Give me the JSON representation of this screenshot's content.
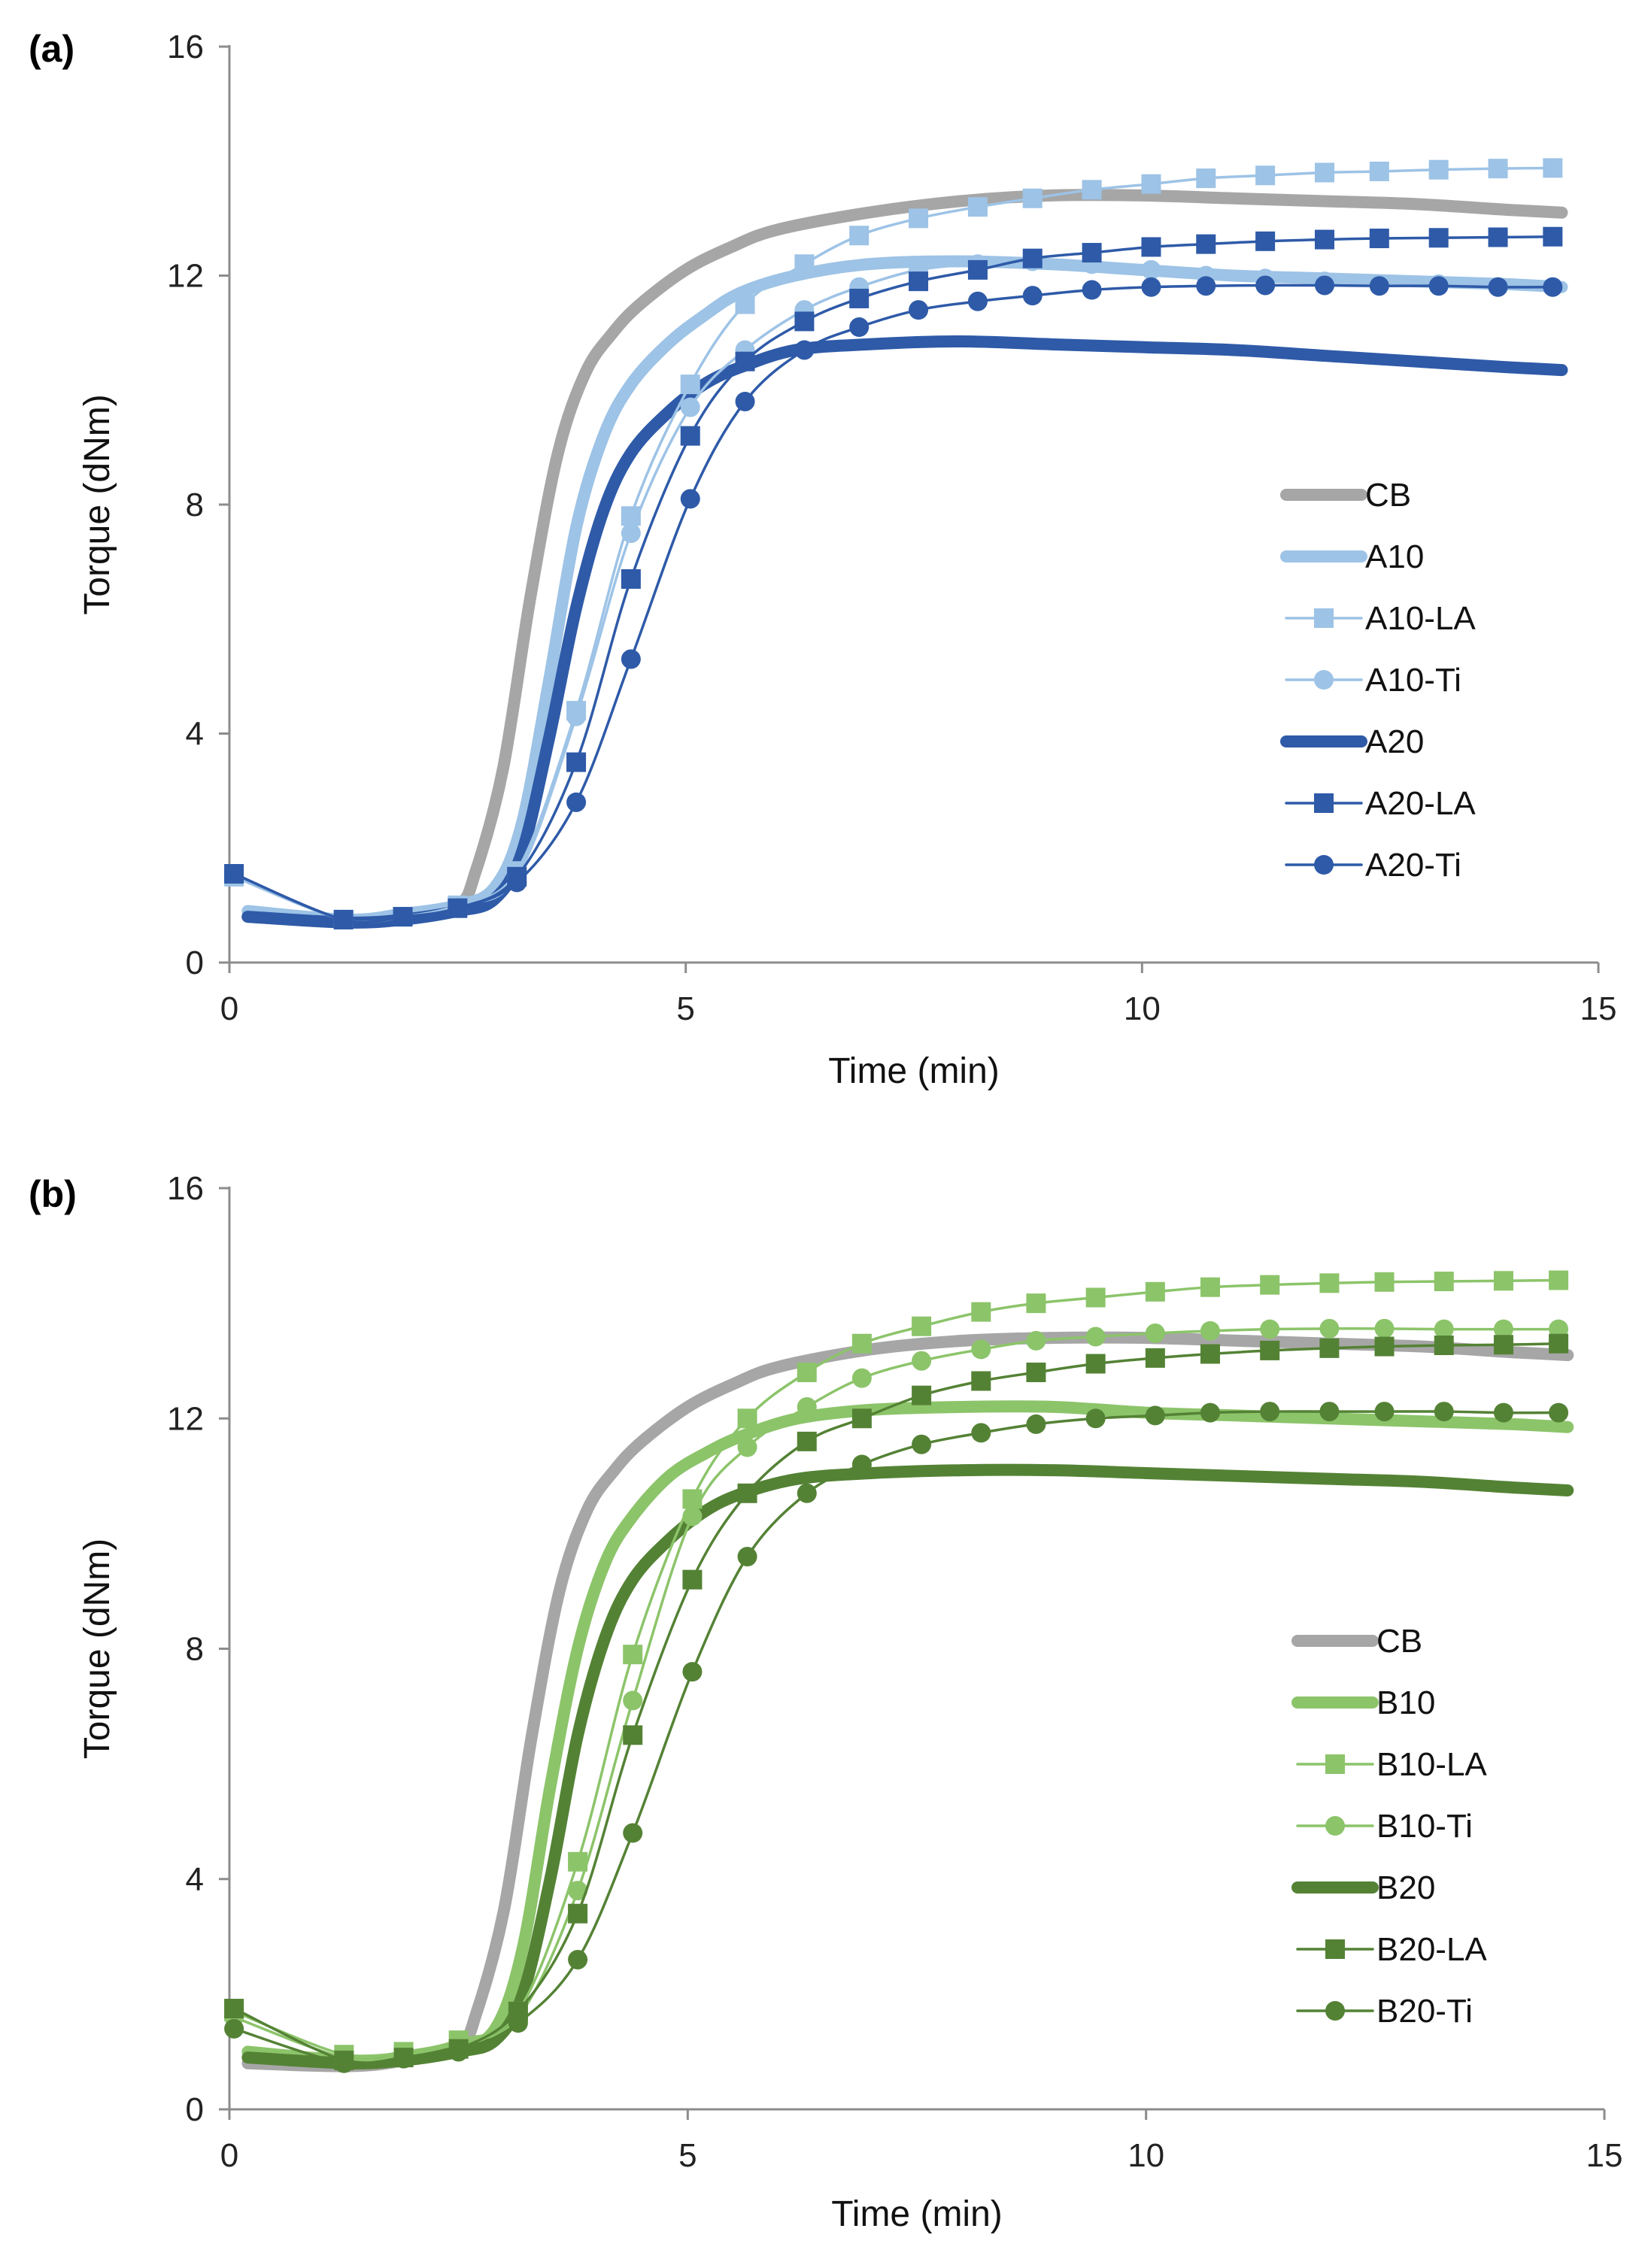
{
  "chart_data": [
    {
      "panel_label": "(a)",
      "type": "line",
      "xlabel": "Time (min)",
      "ylabel": "Torque (dNm)",
      "xlim": [
        0,
        15
      ],
      "ylim": [
        0,
        16
      ],
      "xticks": [
        0,
        5,
        10,
        15
      ],
      "yticks": [
        0,
        4,
        8,
        12,
        16
      ],
      "legend_position": "right",
      "series": [
        {
          "name": "CB",
          "color": "#a6a6a6",
          "style": "thick",
          "marker": "none",
          "x": [
            0.2,
            1.3,
            1.9,
            2.5,
            2.7,
            3.0,
            3.3,
            3.6,
            3.9,
            4.2,
            4.5,
            5.0,
            5.5,
            6.0,
            7.0,
            8.0,
            9.0,
            10.0,
            11.0,
            12.0,
            13.0,
            14.0,
            14.6
          ],
          "y": [
            0.8,
            0.7,
            0.8,
            1.0,
            1.6,
            3.4,
            6.4,
            8.9,
            10.3,
            11.0,
            11.5,
            12.1,
            12.5,
            12.8,
            13.1,
            13.3,
            13.4,
            13.4,
            13.35,
            13.3,
            13.25,
            13.15,
            13.1
          ]
        },
        {
          "name": "A10",
          "color": "#9dc3e6",
          "style": "thick",
          "marker": "none",
          "x": [
            0.2,
            1.3,
            1.9,
            2.5,
            2.9,
            3.2,
            3.5,
            3.8,
            4.1,
            4.4,
            4.8,
            5.2,
            5.6,
            6.2,
            7.0,
            8.0,
            9.0,
            10.0,
            11.0,
            12.0,
            13.0,
            14.0,
            14.6
          ],
          "y": [
            0.9,
            0.75,
            0.85,
            1.0,
            1.3,
            2.4,
            4.9,
            7.6,
            9.2,
            10.1,
            10.8,
            11.3,
            11.7,
            12.0,
            12.2,
            12.25,
            12.2,
            12.1,
            12.0,
            11.95,
            11.9,
            11.85,
            11.8
          ]
        },
        {
          "name": "A10-LA",
          "color": "#9dc3e6",
          "style": "thin",
          "marker": "square",
          "x": [
            0.05,
            1.25,
            1.9,
            2.5,
            3.15,
            3.8,
            4.4,
            5.05,
            5.65,
            6.3,
            6.9,
            7.55,
            8.2,
            8.8,
            9.45,
            10.1,
            10.7,
            11.35,
            12.0,
            12.6,
            13.25,
            13.9,
            14.5
          ],
          "y": [
            1.5,
            0.75,
            0.8,
            1.0,
            1.6,
            4.4,
            7.8,
            10.1,
            11.5,
            12.2,
            12.7,
            13.0,
            13.2,
            13.35,
            13.5,
            13.6,
            13.7,
            13.75,
            13.8,
            13.82,
            13.85,
            13.87,
            13.88
          ]
        },
        {
          "name": "A10-Ti",
          "color": "#9dc3e6",
          "style": "thin",
          "marker": "circle",
          "x": [
            0.05,
            1.25,
            1.9,
            2.5,
            3.15,
            3.8,
            4.4,
            5.05,
            5.65,
            6.3,
            6.9,
            7.55,
            8.2,
            8.8,
            9.45,
            10.1,
            10.7,
            11.35,
            12.0,
            12.6,
            13.25,
            13.9,
            14.5
          ],
          "y": [
            1.5,
            0.75,
            0.8,
            1.0,
            1.5,
            4.3,
            7.5,
            9.7,
            10.7,
            11.4,
            11.8,
            12.1,
            12.2,
            12.25,
            12.2,
            12.1,
            12.0,
            11.95,
            11.9,
            11.85,
            11.85,
            11.8,
            11.8
          ]
        },
        {
          "name": "A20",
          "color": "#2e5aa8",
          "style": "thick",
          "marker": "none",
          "x": [
            0.2,
            1.3,
            1.9,
            2.5,
            2.9,
            3.2,
            3.5,
            3.8,
            4.1,
            4.4,
            4.8,
            5.2,
            5.6,
            6.2,
            7.0,
            8.0,
            9.0,
            10.0,
            11.0,
            12.0,
            13.0,
            14.0,
            14.6
          ],
          "y": [
            0.8,
            0.7,
            0.75,
            0.9,
            1.1,
            1.9,
            3.9,
            6.2,
            7.9,
            8.9,
            9.6,
            10.1,
            10.4,
            10.7,
            10.8,
            10.85,
            10.8,
            10.75,
            10.7,
            10.6,
            10.5,
            10.4,
            10.35
          ]
        },
        {
          "name": "A20-LA",
          "color": "#2e5aa8",
          "style": "thin",
          "marker": "square",
          "x": [
            0.05,
            1.25,
            1.9,
            2.5,
            3.15,
            3.8,
            4.4,
            5.05,
            5.65,
            6.3,
            6.9,
            7.55,
            8.2,
            8.8,
            9.45,
            10.1,
            10.7,
            11.35,
            12.0,
            12.6,
            13.25,
            13.9,
            14.5
          ],
          "y": [
            1.55,
            0.75,
            0.8,
            0.95,
            1.5,
            3.5,
            6.7,
            9.2,
            10.5,
            11.2,
            11.6,
            11.9,
            12.1,
            12.3,
            12.4,
            12.5,
            12.55,
            12.6,
            12.63,
            12.65,
            12.66,
            12.67,
            12.68
          ]
        },
        {
          "name": "A20-Ti",
          "color": "#2e5aa8",
          "style": "thin",
          "marker": "circle",
          "x": [
            0.05,
            1.25,
            1.9,
            2.5,
            3.15,
            3.8,
            4.4,
            5.05,
            5.65,
            6.3,
            6.9,
            7.55,
            8.2,
            8.8,
            9.45,
            10.1,
            10.7,
            11.35,
            12.0,
            12.6,
            13.25,
            13.9,
            14.5
          ],
          "y": [
            1.55,
            0.75,
            0.8,
            0.95,
            1.4,
            2.8,
            5.3,
            8.1,
            9.8,
            10.7,
            11.1,
            11.4,
            11.55,
            11.65,
            11.75,
            11.8,
            11.82,
            11.83,
            11.83,
            11.82,
            11.82,
            11.8,
            11.8
          ]
        }
      ]
    },
    {
      "panel_label": "(b)",
      "type": "line",
      "xlabel": "Time (min)",
      "ylabel": "Torque (dNm)",
      "xlim": [
        0,
        15
      ],
      "ylim": [
        0,
        16
      ],
      "xticks": [
        0,
        5,
        10,
        15
      ],
      "yticks": [
        0,
        4,
        8,
        12,
        16
      ],
      "legend_position": "right",
      "series": [
        {
          "name": "CB",
          "color": "#a6a6a6",
          "style": "thick",
          "marker": "none",
          "x": [
            0.2,
            1.3,
            1.9,
            2.5,
            2.7,
            3.0,
            3.3,
            3.6,
            3.9,
            4.2,
            4.5,
            5.0,
            5.5,
            6.0,
            7.0,
            8.0,
            9.0,
            10.0,
            11.0,
            12.0,
            13.0,
            14.0,
            14.6
          ],
          "y": [
            0.8,
            0.75,
            0.85,
            1.1,
            1.7,
            3.5,
            6.5,
            9.0,
            10.4,
            11.1,
            11.6,
            12.2,
            12.6,
            12.9,
            13.2,
            13.35,
            13.4,
            13.4,
            13.35,
            13.3,
            13.25,
            13.15,
            13.1
          ]
        },
        {
          "name": "B10",
          "color": "#8cc46a",
          "style": "thick",
          "marker": "none",
          "x": [
            0.2,
            1.3,
            1.9,
            2.5,
            2.9,
            3.2,
            3.5,
            3.8,
            4.1,
            4.4,
            4.8,
            5.2,
            5.6,
            6.2,
            7.0,
            8.0,
            9.0,
            10.0,
            11.0,
            12.0,
            13.0,
            14.0,
            14.6
          ],
          "y": [
            1.0,
            0.85,
            0.9,
            1.05,
            1.4,
            2.8,
            5.6,
            8.0,
            9.5,
            10.3,
            11.0,
            11.4,
            11.7,
            12.0,
            12.15,
            12.2,
            12.2,
            12.1,
            12.05,
            12.0,
            11.95,
            11.9,
            11.85
          ]
        },
        {
          "name": "B10-LA",
          "color": "#8cc46a",
          "style": "thin",
          "marker": "square",
          "x": [
            0.05,
            1.25,
            1.9,
            2.5,
            3.15,
            3.8,
            4.4,
            5.05,
            5.65,
            6.3,
            6.9,
            7.55,
            8.2,
            8.8,
            9.45,
            10.1,
            10.7,
            11.35,
            12.0,
            12.6,
            13.25,
            13.9,
            14.5
          ],
          "y": [
            1.7,
            0.95,
            1.0,
            1.2,
            1.7,
            4.3,
            7.9,
            10.6,
            12.0,
            12.8,
            13.3,
            13.6,
            13.85,
            14.0,
            14.1,
            14.2,
            14.28,
            14.32,
            14.35,
            14.37,
            14.38,
            14.39,
            14.4
          ]
        },
        {
          "name": "B10-Ti",
          "color": "#8cc46a",
          "style": "thin",
          "marker": "circle",
          "x": [
            0.05,
            1.25,
            1.9,
            2.5,
            3.15,
            3.8,
            4.4,
            5.05,
            5.65,
            6.3,
            6.9,
            7.55,
            8.2,
            8.8,
            9.45,
            10.1,
            10.7,
            11.35,
            12.0,
            12.6,
            13.25,
            13.9,
            14.5
          ],
          "y": [
            1.6,
            0.9,
            0.95,
            1.15,
            1.6,
            3.8,
            7.1,
            10.3,
            11.5,
            12.2,
            12.7,
            13.0,
            13.2,
            13.35,
            13.42,
            13.48,
            13.52,
            13.55,
            13.56,
            13.56,
            13.55,
            13.55,
            13.55
          ]
        },
        {
          "name": "B20",
          "color": "#548235",
          "style": "thick",
          "marker": "none",
          "x": [
            0.2,
            1.3,
            1.9,
            2.5,
            2.9,
            3.2,
            3.5,
            3.8,
            4.1,
            4.4,
            4.8,
            5.2,
            5.6,
            6.2,
            7.0,
            8.0,
            9.0,
            10.0,
            11.0,
            12.0,
            13.0,
            14.0,
            14.6
          ],
          "y": [
            0.9,
            0.8,
            0.85,
            1.0,
            1.2,
            2.0,
            4.0,
            6.5,
            8.2,
            9.2,
            9.9,
            10.4,
            10.7,
            10.95,
            11.05,
            11.1,
            11.1,
            11.05,
            11.0,
            10.95,
            10.9,
            10.8,
            10.75
          ]
        },
        {
          "name": "B20-LA",
          "color": "#548235",
          "style": "thin",
          "marker": "square",
          "x": [
            0.05,
            1.25,
            1.9,
            2.5,
            3.15,
            3.8,
            4.4,
            5.05,
            5.65,
            6.3,
            6.9,
            7.55,
            8.2,
            8.8,
            9.45,
            10.1,
            10.7,
            11.35,
            12.0,
            12.6,
            13.25,
            13.9,
            14.5
          ],
          "y": [
            1.75,
            0.85,
            0.9,
            1.05,
            1.7,
            3.4,
            6.5,
            9.2,
            10.7,
            11.6,
            12.0,
            12.4,
            12.65,
            12.8,
            12.95,
            13.05,
            13.12,
            13.18,
            13.22,
            13.25,
            13.27,
            13.28,
            13.3
          ]
        },
        {
          "name": "B20-Ti",
          "color": "#548235",
          "style": "thin",
          "marker": "circle",
          "x": [
            0.05,
            1.25,
            1.9,
            2.5,
            3.15,
            3.8,
            4.4,
            5.05,
            5.65,
            6.3,
            6.9,
            7.55,
            8.2,
            8.8,
            9.45,
            10.1,
            10.7,
            11.35,
            12.0,
            12.6,
            13.25,
            13.9,
            14.5
          ],
          "y": [
            1.4,
            0.8,
            0.88,
            1.0,
            1.5,
            2.6,
            4.8,
            7.6,
            9.6,
            10.7,
            11.2,
            11.55,
            11.75,
            11.9,
            12.0,
            12.05,
            12.1,
            12.12,
            12.12,
            12.12,
            12.12,
            12.1,
            12.1
          ]
        }
      ]
    }
  ]
}
